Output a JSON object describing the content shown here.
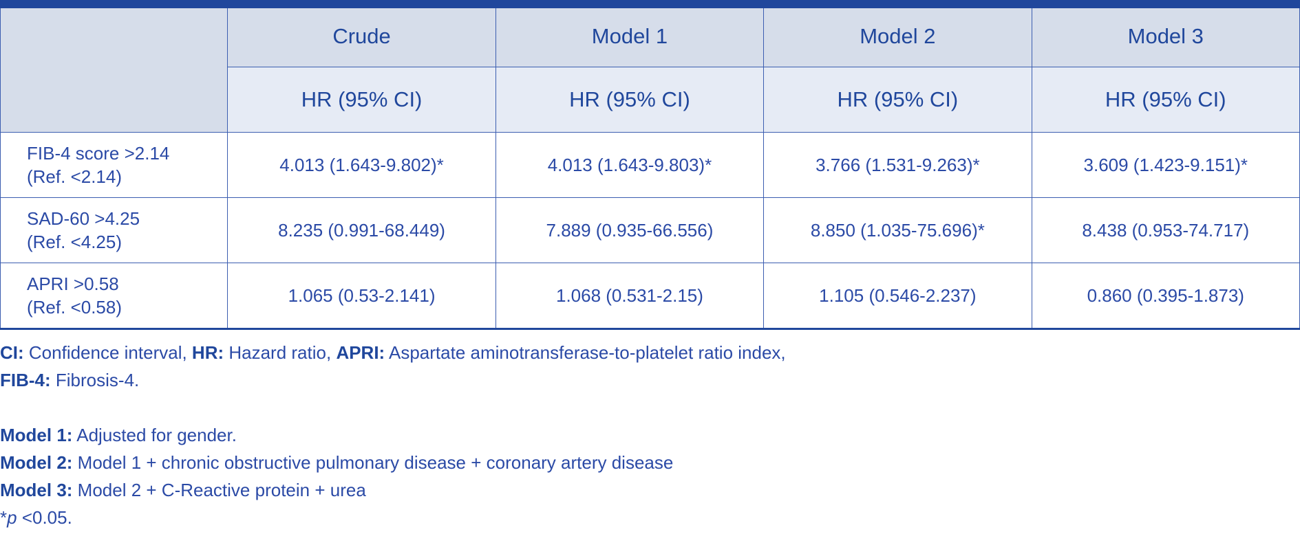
{
  "header": {
    "columns": [
      "Crude",
      "Model 1",
      "Model 2",
      "Model 3"
    ],
    "subheader": [
      "HR (95% CI)",
      "HR (95% CI)",
      "HR (95% CI)",
      "HR (95% CI)"
    ]
  },
  "rows": [
    {
      "label_line1": "FIB-4 score >2.14",
      "label_line2": "(Ref. <2.14)",
      "values": [
        "4.013 (1.643-9.802)*",
        "4.013 (1.643-9.803)*",
        "3.766 (1.531-9.263)*",
        "3.609 (1.423-9.151)*"
      ]
    },
    {
      "label_line1": "SAD-60 >4.25",
      "label_line2": "(Ref. <4.25)",
      "values": [
        "8.235 (0.991-68.449)",
        "7.889 (0.935-66.556)",
        "8.850 (1.035-75.696)*",
        "8.438 (0.953-74.717)"
      ]
    },
    {
      "label_line1": "APRI >0.58",
      "label_line2": "(Ref. <0.58)",
      "values": [
        "1.065 (0.53-2.141)",
        "1.068 (0.531-2.15)",
        "1.105 (0.546-2.237)",
        "0.860 (0.395-1.873)"
      ]
    }
  ],
  "footnotes": {
    "abbr": [
      {
        "term": "CI:",
        "text": " Confidence interval, "
      },
      {
        "term": "HR:",
        "text": " Hazard ratio, "
      },
      {
        "term": "APRI:",
        "text": " Aspartate aminotransferase-to-platelet ratio index,"
      },
      {
        "term": "FIB-4:",
        "text": " Fibrosis-4."
      }
    ],
    "models": [
      {
        "term": "Model 1:",
        "text": " Adjusted for gender."
      },
      {
        "term": "Model 2:",
        "text": " Model 1 + chronic obstructive pulmonary disease + coronary artery disease"
      },
      {
        "term": "Model 3:",
        "text": " Model 2 + C-Reactive protein + urea"
      }
    ],
    "significance": {
      "star": "*",
      "p": "p",
      "rest": " <0.05."
    }
  }
}
